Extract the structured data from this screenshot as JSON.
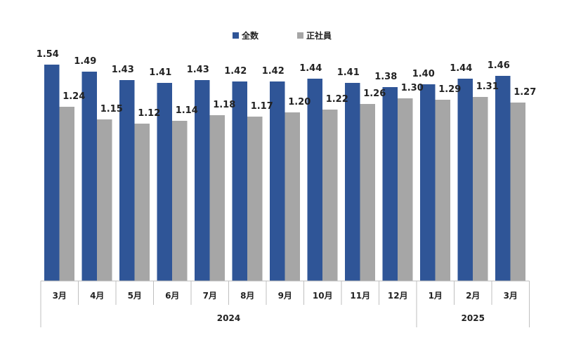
{
  "chart_data": {
    "type": "bar",
    "categories": [
      "3月",
      "4月",
      "5月",
      "6月",
      "7月",
      "8月",
      "9月",
      "10月",
      "11月",
      "12月",
      "1月",
      "2月",
      "3月"
    ],
    "year_groups": [
      {
        "label": "2024",
        "start": 0,
        "end": 9
      },
      {
        "label": "2025",
        "start": 10,
        "end": 12
      }
    ],
    "series": [
      {
        "name": "全数",
        "color": "#2f5597",
        "values": [
          1.54,
          1.49,
          1.43,
          1.41,
          1.43,
          1.42,
          1.42,
          1.44,
          1.41,
          1.38,
          1.4,
          1.44,
          1.46
        ]
      },
      {
        "name": "正社員",
        "color": "#a6a6a6",
        "values": [
          1.24,
          1.15,
          1.12,
          1.14,
          1.18,
          1.17,
          1.2,
          1.22,
          1.26,
          1.3,
          1.29,
          1.31,
          1.27
        ]
      }
    ],
    "ylim": [
      0,
      1.6
    ],
    "legend_position": "top-center",
    "grid": false
  }
}
